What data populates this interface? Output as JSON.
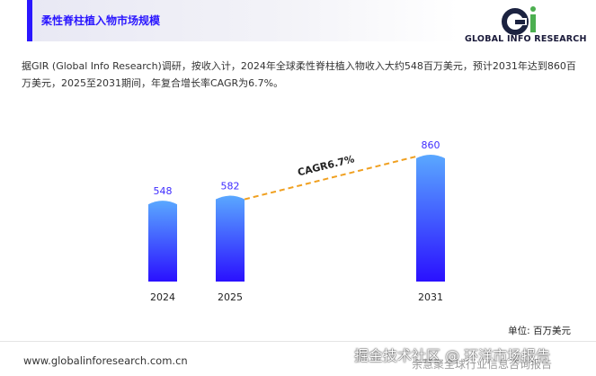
{
  "header": {
    "title": "柔性脊柱植入物市场规模"
  },
  "logo": {
    "text": "GLOBAL INFO RESEARCH"
  },
  "intro": "据GIR (Global Info Research)调研，按收入计，2024年全球柔性脊柱植入物收入大约548百万美元，预计2031年达到860百万美元，2025至2031期间，年复合增长率CAGR为6.7%。",
  "chart_data": {
    "type": "bar",
    "categories": [
      "2024",
      "2025",
      "2031"
    ],
    "values": [
      548,
      582,
      860
    ],
    "annotation": "CAGR6.7%",
    "unit": "单位: 百万美元",
    "colors": {
      "bar_top": "#5aa8ff",
      "bar_bottom": "#2a10ff",
      "label": "#3d2bff",
      "trend": "#f0a020"
    }
  },
  "footer": {
    "url": "www.globalinforesearch.com.cn",
    "watermark_main": "掘金技术社区 @ 环洋市场报告",
    "watermark_faint": "余慧聚全球行业信息咨询报告"
  }
}
